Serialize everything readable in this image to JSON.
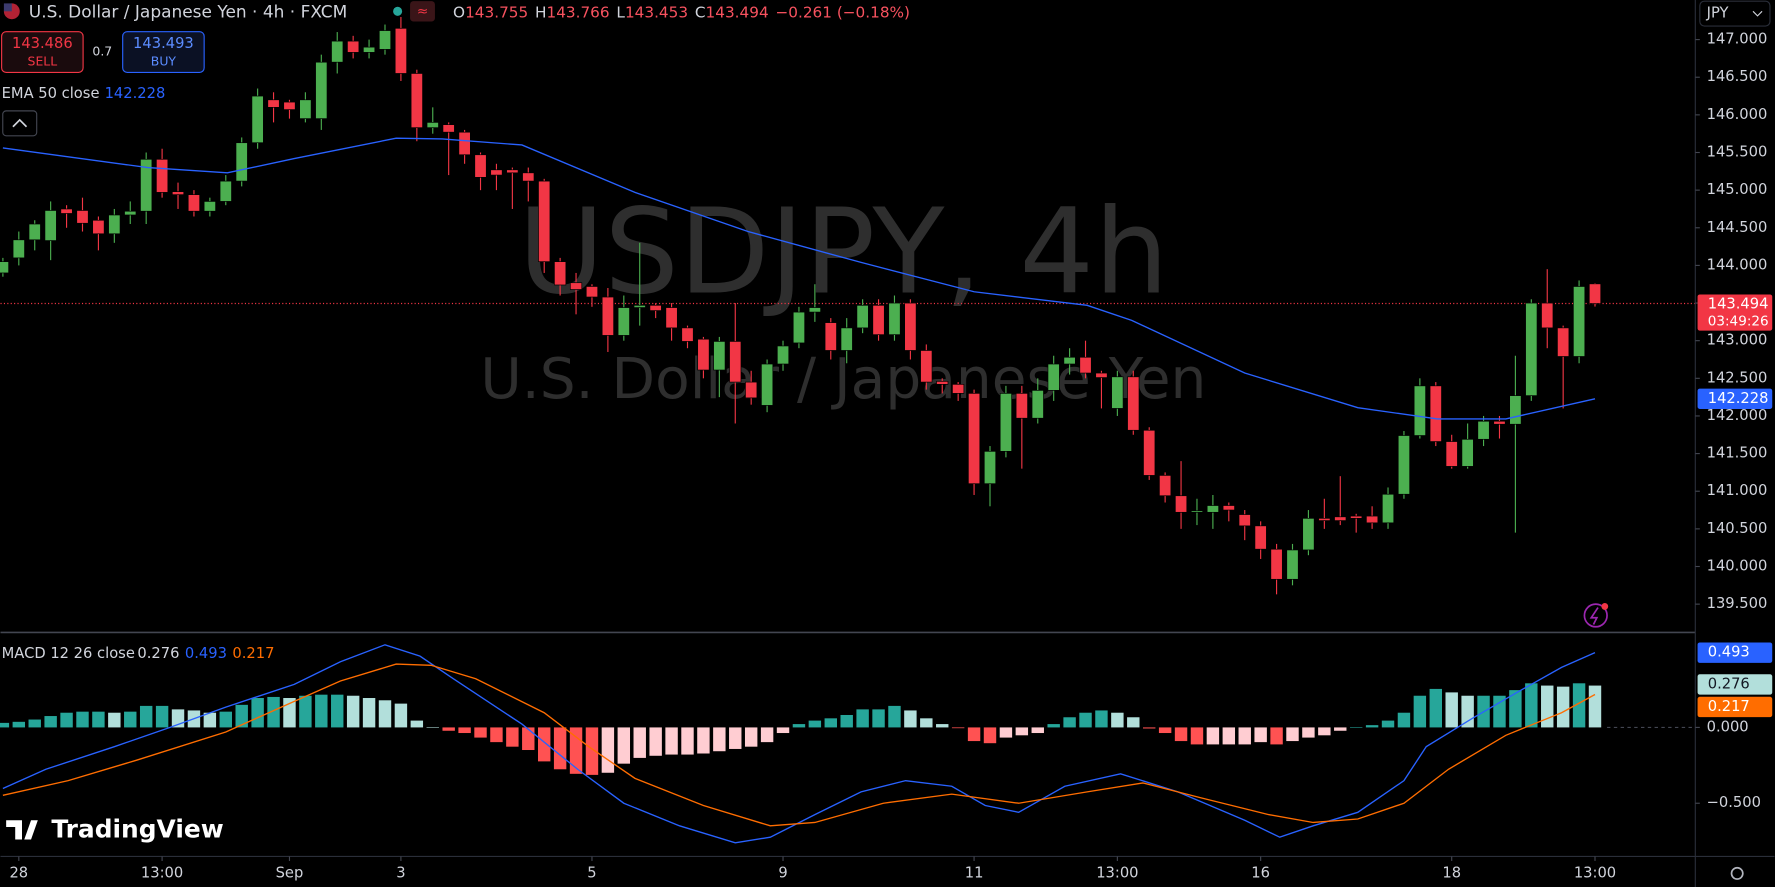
{
  "header": {
    "title": "U.S. Dollar / Japanese Yen · 4h · FXCM",
    "ohlc_letters": [
      "O",
      "H",
      "L",
      "C"
    ],
    "change": "−0.261 (−0.18%)",
    "sell_price": 143.486,
    "sell": "SELL",
    "spread": 0.7,
    "buy_price": 143.493,
    "buy": "BUY",
    "currency": "JPY",
    "watermark_symbol": "USDJPY, 4h",
    "watermark_name": "U.S. Dollar / Japanese Yen",
    "logo": "TradingView",
    "countdown": "03:49:26"
  },
  "chart_data": [
    {
      "type": "candlestick",
      "up_color": "#4caf50",
      "down_color": "#f23645",
      "xlim": [
        -0.15,
        106.3
      ],
      "ylim": [
        139.139,
        147.526
      ],
      "yticks": [
        {
          "value": 139.5,
          "label": "139.500"
        },
        {
          "value": 140,
          "label": "140.000"
        },
        {
          "value": 140.5,
          "label": "140.500"
        },
        {
          "value": 141,
          "label": "141.000"
        },
        {
          "value": 141.5,
          "label": "141.500"
        },
        {
          "value": 142,
          "label": "142.000"
        },
        {
          "value": 142.5,
          "label": "142.500"
        },
        {
          "value": 143,
          "label": "143.000"
        },
        {
          "value": 143.5,
          "label": "143.500"
        },
        {
          "value": 144,
          "label": "144.000"
        },
        {
          "value": 144.5,
          "label": "144.500"
        },
        {
          "value": 145,
          "label": "145.000"
        },
        {
          "value": 145.5,
          "label": "145.500"
        },
        {
          "value": 146,
          "label": "146.000"
        },
        {
          "value": 146.5,
          "label": "146.500"
        },
        {
          "value": 147,
          "label": "147.000"
        }
      ],
      "xticks": [
        {
          "value": 1,
          "label": "28"
        },
        {
          "value": 10,
          "label": "13:00"
        },
        {
          "value": 18,
          "label": "Sep"
        },
        {
          "value": 25,
          "label": "3"
        },
        {
          "value": 37,
          "label": "5"
        },
        {
          "value": 49,
          "label": "9"
        },
        {
          "value": 61,
          "label": "11"
        },
        {
          "value": 70,
          "label": "13:00"
        },
        {
          "value": 79,
          "label": "16"
        },
        {
          "value": 91,
          "label": "18"
        },
        {
          "value": 100,
          "label": "13:00"
        }
      ],
      "candles": [
        [
          143.9,
          144.1,
          143.85,
          144.05
        ],
        [
          144.1,
          144.45,
          144.0,
          144.34
        ],
        [
          144.34,
          144.6,
          144.2,
          144.55
        ],
        [
          144.33,
          144.85,
          144.07,
          144.73
        ],
        [
          144.75,
          144.8,
          144.5,
          144.69
        ],
        [
          144.73,
          144.9,
          144.45,
          144.56
        ],
        [
          144.6,
          144.65,
          144.2,
          144.42
        ],
        [
          144.42,
          144.75,
          144.3,
          144.67
        ],
        [
          144.67,
          144.85,
          144.55,
          144.72
        ],
        [
          144.72,
          145.5,
          144.55,
          145.41
        ],
        [
          145.41,
          145.55,
          144.9,
          144.97
        ],
        [
          144.98,
          145.1,
          144.75,
          144.94
        ],
        [
          144.94,
          145.0,
          144.65,
          144.72
        ],
        [
          144.72,
          144.9,
          144.65,
          144.85
        ],
        [
          144.85,
          145.2,
          144.8,
          145.12
        ],
        [
          145.12,
          145.7,
          145.05,
          145.63
        ],
        [
          145.63,
          146.35,
          145.55,
          146.25
        ],
        [
          146.2,
          146.3,
          145.9,
          146.1
        ],
        [
          146.17,
          146.2,
          145.95,
          146.07
        ],
        [
          145.95,
          146.3,
          145.9,
          146.2
        ],
        [
          145.95,
          146.8,
          145.8,
          146.7
        ],
        [
          146.7,
          147.1,
          146.55,
          146.98
        ],
        [
          146.98,
          147.05,
          146.75,
          146.83
        ],
        [
          146.83,
          147.0,
          146.75,
          146.9
        ],
        [
          146.87,
          147.2,
          146.8,
          147.12
        ],
        [
          147.15,
          147.3,
          146.45,
          146.55
        ],
        [
          146.55,
          146.6,
          145.65,
          145.83
        ],
        [
          145.83,
          146.1,
          145.75,
          145.9
        ],
        [
          145.87,
          145.9,
          145.2,
          145.77
        ],
        [
          145.77,
          145.8,
          145.35,
          145.47
        ],
        [
          145.47,
          145.5,
          145.0,
          145.17
        ],
        [
          145.27,
          145.35,
          145.0,
          145.2
        ],
        [
          145.27,
          145.3,
          144.75,
          145.23
        ],
        [
          145.23,
          145.3,
          144.85,
          145.12
        ],
        [
          145.12,
          145.15,
          143.9,
          144.05
        ],
        [
          144.05,
          144.1,
          143.6,
          143.74
        ],
        [
          143.77,
          143.9,
          143.35,
          143.68
        ],
        [
          143.72,
          143.75,
          143.45,
          143.58
        ],
        [
          143.58,
          143.7,
          142.85,
          143.07
        ],
        [
          143.07,
          143.6,
          143.0,
          143.44
        ],
        [
          143.44,
          144.3,
          143.2,
          143.47
        ],
        [
          143.47,
          143.5,
          143.3,
          143.4
        ],
        [
          143.44,
          143.5,
          143.0,
          143.17
        ],
        [
          143.17,
          143.2,
          142.9,
          142.99
        ],
        [
          143.02,
          143.05,
          142.5,
          142.61
        ],
        [
          142.61,
          143.05,
          142.25,
          142.99
        ],
        [
          142.99,
          143.5,
          141.9,
          142.45
        ],
        [
          142.45,
          142.6,
          142.15,
          142.24
        ],
        [
          142.14,
          142.75,
          142.05,
          142.69
        ],
        [
          142.69,
          143.0,
          142.6,
          142.93
        ],
        [
          142.97,
          143.45,
          142.9,
          143.38
        ],
        [
          143.38,
          143.75,
          143.25,
          143.44
        ],
        [
          143.24,
          143.3,
          142.75,
          142.87
        ],
        [
          142.87,
          143.3,
          142.7,
          143.17
        ],
        [
          143.17,
          143.55,
          143.1,
          143.47
        ],
        [
          143.47,
          143.55,
          143.0,
          143.08
        ],
        [
          143.08,
          143.6,
          143.0,
          143.5
        ],
        [
          143.5,
          143.55,
          142.75,
          142.87
        ],
        [
          142.87,
          142.95,
          142.35,
          142.45
        ],
        [
          142.46,
          142.5,
          142.3,
          142.42
        ],
        [
          142.42,
          142.45,
          142.2,
          142.3
        ],
        [
          142.3,
          142.35,
          140.95,
          141.1
        ],
        [
          141.1,
          141.6,
          140.8,
          141.53
        ],
        [
          141.53,
          142.4,
          141.45,
          142.3
        ],
        [
          142.3,
          142.4,
          141.3,
          141.97
        ],
        [
          141.97,
          142.5,
          141.9,
          142.34
        ],
        [
          142.34,
          142.8,
          142.2,
          142.69
        ],
        [
          142.69,
          142.9,
          142.55,
          142.78
        ],
        [
          142.78,
          143.0,
          142.5,
          142.57
        ],
        [
          142.57,
          142.6,
          142.1,
          142.51
        ],
        [
          142.1,
          142.6,
          142.0,
          142.52
        ],
        [
          142.52,
          142.6,
          141.75,
          141.81
        ],
        [
          141.81,
          141.85,
          141.15,
          141.21
        ],
        [
          141.21,
          141.25,
          140.85,
          140.94
        ],
        [
          140.94,
          141.4,
          140.5,
          140.72
        ],
        [
          140.72,
          140.9,
          140.55,
          140.74
        ],
        [
          140.72,
          140.95,
          140.5,
          140.81
        ],
        [
          140.81,
          140.85,
          140.6,
          140.75
        ],
        [
          140.69,
          140.75,
          140.35,
          140.54
        ],
        [
          140.54,
          140.6,
          140.1,
          140.23
        ],
        [
          140.23,
          140.3,
          139.63,
          139.83
        ],
        [
          139.83,
          140.3,
          139.75,
          140.22
        ],
        [
          140.22,
          140.75,
          140.15,
          140.64
        ],
        [
          140.64,
          140.9,
          140.5,
          140.61
        ],
        [
          140.66,
          141.2,
          140.55,
          140.61
        ],
        [
          140.67,
          140.7,
          140.45,
          140.64
        ],
        [
          140.67,
          140.8,
          140.5,
          140.58
        ],
        [
          140.58,
          141.05,
          140.5,
          140.96
        ],
        [
          140.96,
          141.8,
          140.9,
          141.74
        ],
        [
          141.74,
          142.5,
          141.7,
          142.4
        ],
        [
          142.4,
          142.45,
          141.6,
          141.66
        ],
        [
          141.66,
          141.75,
          141.3,
          141.33
        ],
        [
          141.33,
          141.9,
          141.3,
          141.69
        ],
        [
          141.69,
          142.0,
          141.6,
          141.93
        ],
        [
          141.93,
          142.0,
          141.7,
          141.89
        ],
        [
          141.89,
          142.8,
          140.45,
          142.27
        ],
        [
          142.27,
          143.55,
          142.2,
          143.5
        ],
        [
          143.5,
          143.95,
          142.9,
          143.17
        ],
        [
          143.17,
          143.2,
          142.1,
          142.79
        ],
        [
          142.79,
          143.8,
          142.7,
          143.72
        ],
        [
          143.755,
          143.766,
          143.453,
          143.494
        ]
      ],
      "series": [
        {
          "name": "EMA 50 close",
          "color": "#2962ff",
          "x": [
            0,
            9.1,
            14.1,
            18.3,
            24.7,
            27.6,
            32.6,
            39.7,
            46.8,
            53.9,
            61,
            68.1,
            70.9,
            78,
            85.1,
            90.1,
            94.4,
            100
          ],
          "values": [
            145.56,
            145.3,
            145.23,
            145.42,
            145.69,
            145.68,
            145.6,
            144.97,
            144.45,
            144.04,
            143.65,
            143.47,
            143.27,
            142.57,
            142.11,
            141.96,
            141.96,
            142.228
          ]
        }
      ]
    },
    {
      "type": "macd",
      "title": "MACD 12 26 close",
      "xlim": [
        -0.15,
        106.3
      ],
      "ylim": [
        -0.851,
        0.619
      ],
      "yticks": [
        {
          "value": 0,
          "label": "0.000"
        },
        {
          "value": -0.5,
          "label": "−0.500"
        }
      ],
      "histogram": {
        "colors": {
          "grow_above": "#26a69a",
          "fall_above": "#b2dfdb",
          "grow_below": "#ffcdd2",
          "fall_below": "#ff5252"
        },
        "values": [
          0.03,
          0.037,
          0.052,
          0.075,
          0.097,
          0.104,
          0.104,
          0.097,
          0.104,
          0.142,
          0.142,
          0.119,
          0.112,
          0.097,
          0.104,
          0.149,
          0.194,
          0.201,
          0.194,
          0.209,
          0.216,
          0.216,
          0.209,
          0.194,
          0.179,
          0.157,
          0.045,
          0.002,
          -0.022,
          -0.037,
          -0.067,
          -0.097,
          -0.127,
          -0.149,
          -0.224,
          -0.276,
          -0.306,
          -0.313,
          -0.299,
          -0.239,
          -0.201,
          -0.187,
          -0.179,
          -0.179,
          -0.172,
          -0.157,
          -0.142,
          -0.127,
          -0.097,
          -0.037,
          0.022,
          0.045,
          0.06,
          0.082,
          0.119,
          0.119,
          0.142,
          0.112,
          0.06,
          0.022,
          -0.005,
          -0.09,
          -0.104,
          -0.067,
          -0.052,
          -0.037,
          0.022,
          0.067,
          0.097,
          0.112,
          0.097,
          0.067,
          -0.007,
          -0.037,
          -0.09,
          -0.112,
          -0.112,
          -0.112,
          -0.112,
          -0.097,
          -0.112,
          -0.09,
          -0.067,
          -0.052,
          -0.022,
          0.002,
          0.015,
          0.045,
          0.097,
          0.209,
          0.254,
          0.231,
          0.209,
          0.209,
          0.209,
          0.246,
          0.291,
          0.276,
          0.269,
          0.291,
          0.276
        ]
      },
      "series": [
        {
          "color": "#2962ff",
          "x": [
            0,
            2.7,
            7,
            10.5,
            14,
            18.3,
            21.2,
            24,
            26.2,
            28.3,
            32.6,
            36.1,
            39,
            42.5,
            46,
            48.2,
            51,
            53.9,
            56.7,
            59.6,
            61.7,
            63.8,
            66.7,
            70.2,
            73.8,
            78,
            80.2,
            82.3,
            85.1,
            88,
            89.4,
            92.3,
            95.1,
            97.9,
            100
          ],
          "values": [
            -0.403,
            -0.276,
            -0.127,
            0,
            0.134,
            0.284,
            0.433,
            0.545,
            0.47,
            0.321,
            0.022,
            -0.276,
            -0.5,
            -0.649,
            -0.761,
            -0.724,
            -0.575,
            -0.425,
            -0.351,
            -0.388,
            -0.515,
            -0.56,
            -0.388,
            -0.306,
            -0.425,
            -0.612,
            -0.724,
            -0.649,
            -0.56,
            -0.351,
            -0.127,
            0.06,
            0.231,
            0.396,
            0.493
          ]
        },
        {
          "color": "#ff6d00",
          "x": [
            0,
            4.1,
            8.4,
            14,
            18.3,
            21.2,
            24.7,
            26.9,
            29.7,
            34,
            36.8,
            39.7,
            44,
            48.2,
            51,
            55.3,
            59.6,
            63.8,
            68.1,
            71.6,
            75.2,
            79.5,
            82.3,
            85.1,
            88,
            90.8,
            94.4,
            97.9,
            100
          ],
          "values": [
            -0.448,
            -0.351,
            -0.216,
            -0.03,
            0.172,
            0.306,
            0.418,
            0.41,
            0.321,
            0.097,
            -0.127,
            -0.336,
            -0.515,
            -0.649,
            -0.627,
            -0.5,
            -0.44,
            -0.5,
            -0.425,
            -0.366,
            -0.463,
            -0.575,
            -0.627,
            -0.604,
            -0.5,
            -0.276,
            -0.052,
            0.097,
            0.217
          ]
        }
      ]
    }
  ]
}
